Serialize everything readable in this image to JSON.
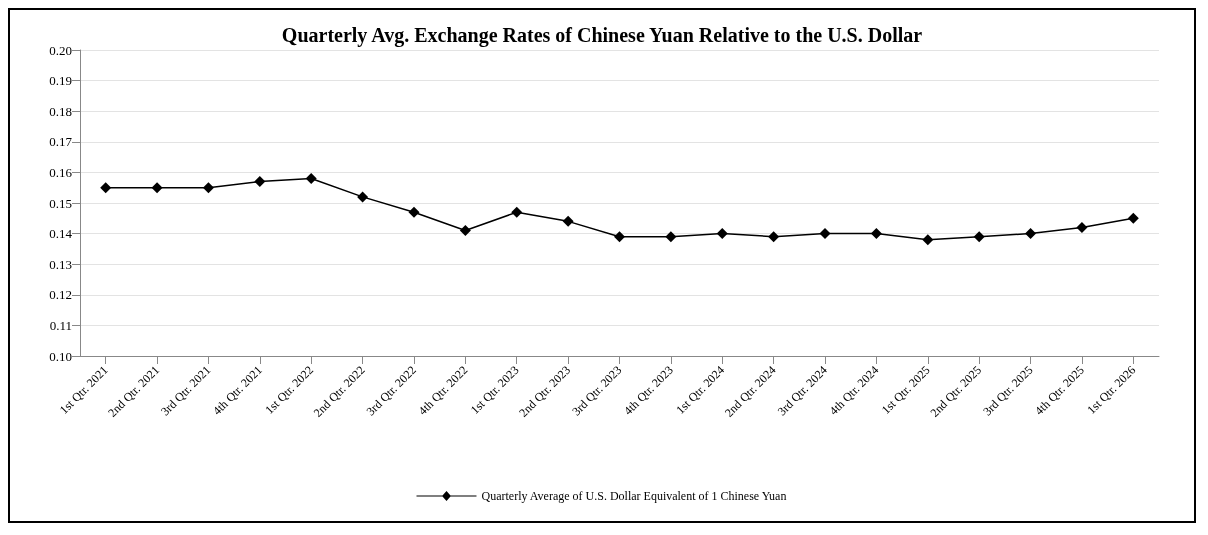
{
  "chart_data": {
    "type": "line",
    "title": "Quarterly Avg. Exchange Rates of Chinese Yuan Relative to the U.S. Dollar",
    "categories": [
      "1st Qtr. 2021",
      "2nd Qtr. 2021",
      "3rd Qtr. 2021",
      "4th Qtr. 2021",
      "1st Qtr. 2022",
      "2nd Qtr. 2022",
      "3rd Qtr. 2022",
      "4th Qtr. 2022",
      "1st Qtr. 2023",
      "2nd Qtr. 2023",
      "3rd Qtr. 2023",
      "4th Qtr. 2023",
      "1st Qtr. 2024",
      "2nd Qtr. 2024",
      "3rd Qtr. 2024",
      "4th Qtr. 2024",
      "1st Qtr. 2025",
      "2nd Qtr. 2025",
      "3rd Qtr. 2025",
      "4th Qtr. 2025",
      "1st Qtr. 2026"
    ],
    "series": [
      {
        "name": "Quarterly Average of U.S. Dollar Equivalent of 1 Chinese Yuan",
        "color": "#000000",
        "values": [
          0.155,
          0.155,
          0.155,
          0.157,
          0.158,
          0.152,
          0.147,
          0.141,
          0.147,
          0.144,
          0.139,
          0.139,
          0.14,
          0.139,
          0.14,
          0.14,
          0.138,
          0.139,
          0.14,
          0.142,
          0.145
        ]
      }
    ],
    "ylim": [
      0.1,
      0.2
    ],
    "yticks": [
      {
        "value": 0.1,
        "label": "0.10"
      },
      0.11,
      0.12,
      0.13,
      0.14,
      0.15,
      0.16,
      0.17,
      0.18,
      0.19,
      {
        "value": 0.2,
        "label": "0.20"
      }
    ],
    "grid": "y",
    "legend": "bottom",
    "marker": "diamond",
    "line_style": "solid"
  }
}
